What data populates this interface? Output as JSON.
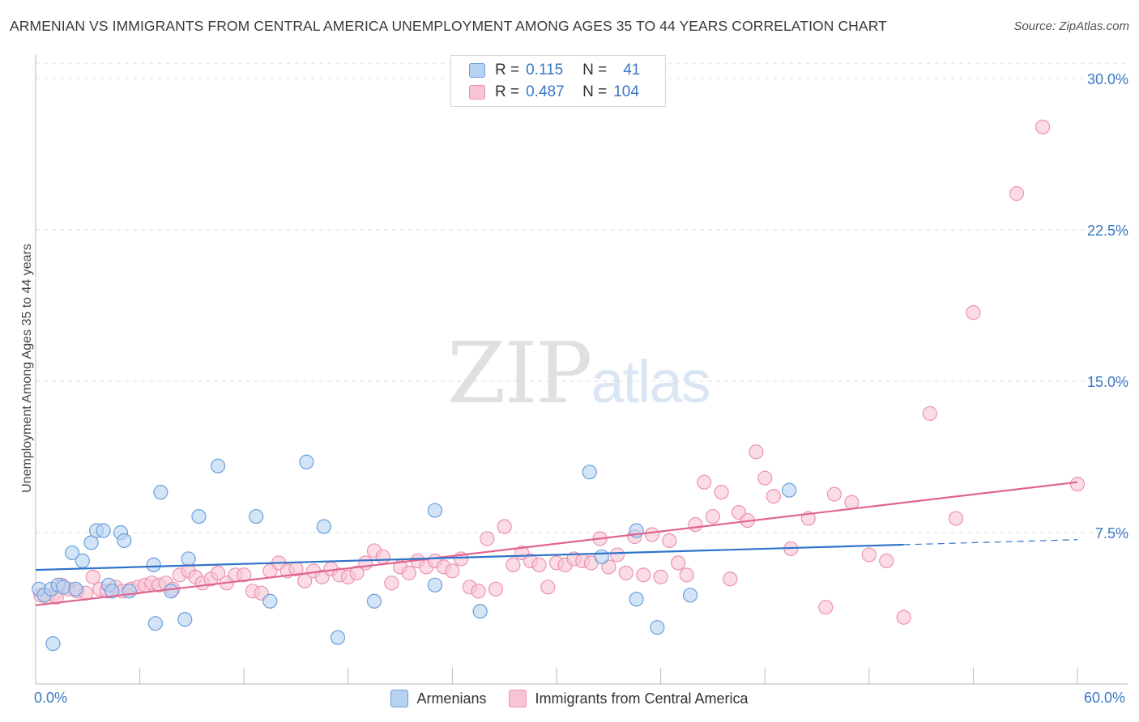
{
  "title": "ARMENIAN VS IMMIGRANTS FROM CENTRAL AMERICA UNEMPLOYMENT AMONG AGES 35 TO 44 YEARS CORRELATION CHART",
  "source": "Source: ZipAtlas.com",
  "stats": {
    "rows": [
      {
        "r_label": "R =",
        "r_value": "0.115",
        "n_label": "N =",
        "n_value": "41"
      },
      {
        "r_label": "R =",
        "r_value": "0.487",
        "n_label": "N =",
        "n_value": "104"
      }
    ]
  },
  "watermark": {
    "zip": "ZIP",
    "atlas": "atlas"
  },
  "colors": {
    "blue_fill": "#b8d2f2",
    "blue_stroke": "#6a9fdc",
    "blue_line": "#2f73c9",
    "pink_fill": "#f8c4d4",
    "pink_stroke": "#eb93b0",
    "pink_line": "#e0648f",
    "grid": "#dddddd",
    "tick_text": "#3a78c3"
  },
  "chart_data": {
    "type": "scatter",
    "title": "ARMENIAN VS IMMIGRANTS FROM CENTRAL AMERICA UNEMPLOYMENT AMONG AGES 35 TO 44 YEARS CORRELATION CHART",
    "xlabel": "",
    "ylabel": "Unemployment Among Ages 35 to 44 years",
    "xlim": [
      0,
      60
    ],
    "ylim": [
      0,
      30
    ],
    "x_tick_labels": [
      "0.0%",
      "60.0%"
    ],
    "y_ticks": [
      7.5,
      15.0,
      22.5,
      30.0
    ],
    "y_tick_labels": [
      "7.5%",
      "15.0%",
      "22.5%",
      "30.0%"
    ],
    "grid": true,
    "legend_position": "bottom",
    "series": [
      {
        "name": "Armenians",
        "color": "#6a9fdc",
        "points": [
          [
            0.2,
            4.7
          ],
          [
            0.5,
            4.4
          ],
          [
            0.9,
            4.7
          ],
          [
            1.3,
            4.9
          ],
          [
            1.6,
            4.8
          ],
          [
            2.1,
            6.5
          ],
          [
            2.3,
            4.7
          ],
          [
            2.7,
            6.1
          ],
          [
            3.2,
            7.0
          ],
          [
            3.5,
            7.6
          ],
          [
            3.9,
            7.6
          ],
          [
            4.2,
            4.9
          ],
          [
            4.4,
            4.6
          ],
          [
            4.9,
            7.5
          ],
          [
            5.1,
            7.1
          ],
          [
            5.4,
            4.6
          ],
          [
            6.8,
            5.9
          ],
          [
            6.9,
            3.0
          ],
          [
            7.2,
            9.5
          ],
          [
            7.8,
            4.6
          ],
          [
            8.6,
            3.2
          ],
          [
            8.8,
            6.2
          ],
          [
            9.4,
            8.3
          ],
          [
            10.5,
            10.8
          ],
          [
            12.7,
            8.3
          ],
          [
            13.5,
            4.1
          ],
          [
            15.6,
            11.0
          ],
          [
            16.6,
            7.8
          ],
          [
            17.4,
            2.3
          ],
          [
            19.5,
            4.1
          ],
          [
            23.0,
            4.9
          ],
          [
            23.0,
            8.6
          ],
          [
            25.6,
            3.6
          ],
          [
            31.9,
            10.5
          ],
          [
            32.6,
            6.3
          ],
          [
            34.6,
            7.6
          ],
          [
            34.6,
            4.2
          ],
          [
            35.8,
            2.8
          ],
          [
            37.7,
            4.4
          ],
          [
            43.4,
            9.6
          ],
          [
            1.0,
            2.0
          ]
        ],
        "note_removed": false,
        "trend": {
          "x": [
            0,
            50
          ],
          "y": [
            5.65,
            6.9
          ]
        },
        "trend_dashed": {
          "x": [
            50,
            60
          ],
          "y": [
            6.9,
            7.15
          ]
        }
      },
      {
        "name": "Immigrants from Central America",
        "color": "#eb93b0",
        "points": [
          [
            0.3,
            4.4
          ],
          [
            0.7,
            4.3
          ],
          [
            1.1,
            4.5
          ],
          [
            1.5,
            4.9
          ],
          [
            1.9,
            4.7
          ],
          [
            2.4,
            4.6
          ],
          [
            2.9,
            4.5
          ],
          [
            3.3,
            5.3
          ],
          [
            3.7,
            4.7
          ],
          [
            4.1,
            4.6
          ],
          [
            4.6,
            4.8
          ],
          [
            5.0,
            4.6
          ],
          [
            5.5,
            4.7
          ],
          [
            5.9,
            4.8
          ],
          [
            6.3,
            4.9
          ],
          [
            6.7,
            5.0
          ],
          [
            7.1,
            4.9
          ],
          [
            7.5,
            5.0
          ],
          [
            7.9,
            4.7
          ],
          [
            8.3,
            5.4
          ],
          [
            8.8,
            5.6
          ],
          [
            9.2,
            5.3
          ],
          [
            9.6,
            5.0
          ],
          [
            10.1,
            5.2
          ],
          [
            10.5,
            5.5
          ],
          [
            11.0,
            5.0
          ],
          [
            11.5,
            5.4
          ],
          [
            12.0,
            5.4
          ],
          [
            12.5,
            4.6
          ],
          [
            13.0,
            4.5
          ],
          [
            13.5,
            5.6
          ],
          [
            14.0,
            6.0
          ],
          [
            14.5,
            5.6
          ],
          [
            15.0,
            5.7
          ],
          [
            15.5,
            5.1
          ],
          [
            16.0,
            5.6
          ],
          [
            16.5,
            5.3
          ],
          [
            17.0,
            5.7
          ],
          [
            17.5,
            5.4
          ],
          [
            18.0,
            5.3
          ],
          [
            18.5,
            5.5
          ],
          [
            19.0,
            6.0
          ],
          [
            19.5,
            6.6
          ],
          [
            20.0,
            6.3
          ],
          [
            20.5,
            5.0
          ],
          [
            21.0,
            5.8
          ],
          [
            21.5,
            5.5
          ],
          [
            22.0,
            6.1
          ],
          [
            22.5,
            5.8
          ],
          [
            23.0,
            6.1
          ],
          [
            23.5,
            5.8
          ],
          [
            24.0,
            5.6
          ],
          [
            24.5,
            6.2
          ],
          [
            25.0,
            4.8
          ],
          [
            25.5,
            4.6
          ],
          [
            26.0,
            7.2
          ],
          [
            26.5,
            4.7
          ],
          [
            27.0,
            7.8
          ],
          [
            27.5,
            5.9
          ],
          [
            28.0,
            6.5
          ],
          [
            28.5,
            6.1
          ],
          [
            29.0,
            5.9
          ],
          [
            29.5,
            4.8
          ],
          [
            30.0,
            6.0
          ],
          [
            30.5,
            5.9
          ],
          [
            31.0,
            6.2
          ],
          [
            31.5,
            6.1
          ],
          [
            32.0,
            6.0
          ],
          [
            32.5,
            7.2
          ],
          [
            33.0,
            5.8
          ],
          [
            33.5,
            6.4
          ],
          [
            34.0,
            5.5
          ],
          [
            34.5,
            7.3
          ],
          [
            35.0,
            5.4
          ],
          [
            35.5,
            7.4
          ],
          [
            36.0,
            5.3
          ],
          [
            36.5,
            7.1
          ],
          [
            37.0,
            6.0
          ],
          [
            37.5,
            5.4
          ],
          [
            38.0,
            7.9
          ],
          [
            38.5,
            10.0
          ],
          [
            39.0,
            8.3
          ],
          [
            39.5,
            9.5
          ],
          [
            40.0,
            5.2
          ],
          [
            40.5,
            8.5
          ],
          [
            41.0,
            8.1
          ],
          [
            41.5,
            11.5
          ],
          [
            42.0,
            10.2
          ],
          [
            42.5,
            9.3
          ],
          [
            43.5,
            6.7
          ],
          [
            44.5,
            8.2
          ],
          [
            45.5,
            3.8
          ],
          [
            46.0,
            9.4
          ],
          [
            47.0,
            9.0
          ],
          [
            48.0,
            6.4
          ],
          [
            49.0,
            6.1
          ],
          [
            50.0,
            3.3
          ],
          [
            51.5,
            13.4
          ],
          [
            53.0,
            8.2
          ],
          [
            54.0,
            18.4
          ],
          [
            56.5,
            24.3
          ],
          [
            58.0,
            27.6
          ],
          [
            60.0,
            9.9
          ],
          [
            1.2,
            4.3
          ]
        ],
        "trend": {
          "x": [
            0,
            60
          ],
          "y": [
            3.9,
            10.0
          ]
        }
      }
    ]
  },
  "legend": {
    "items": [
      {
        "label": "Armenians",
        "swatch": "blue"
      },
      {
        "label": "Immigrants from Central America",
        "swatch": "pink"
      }
    ]
  }
}
